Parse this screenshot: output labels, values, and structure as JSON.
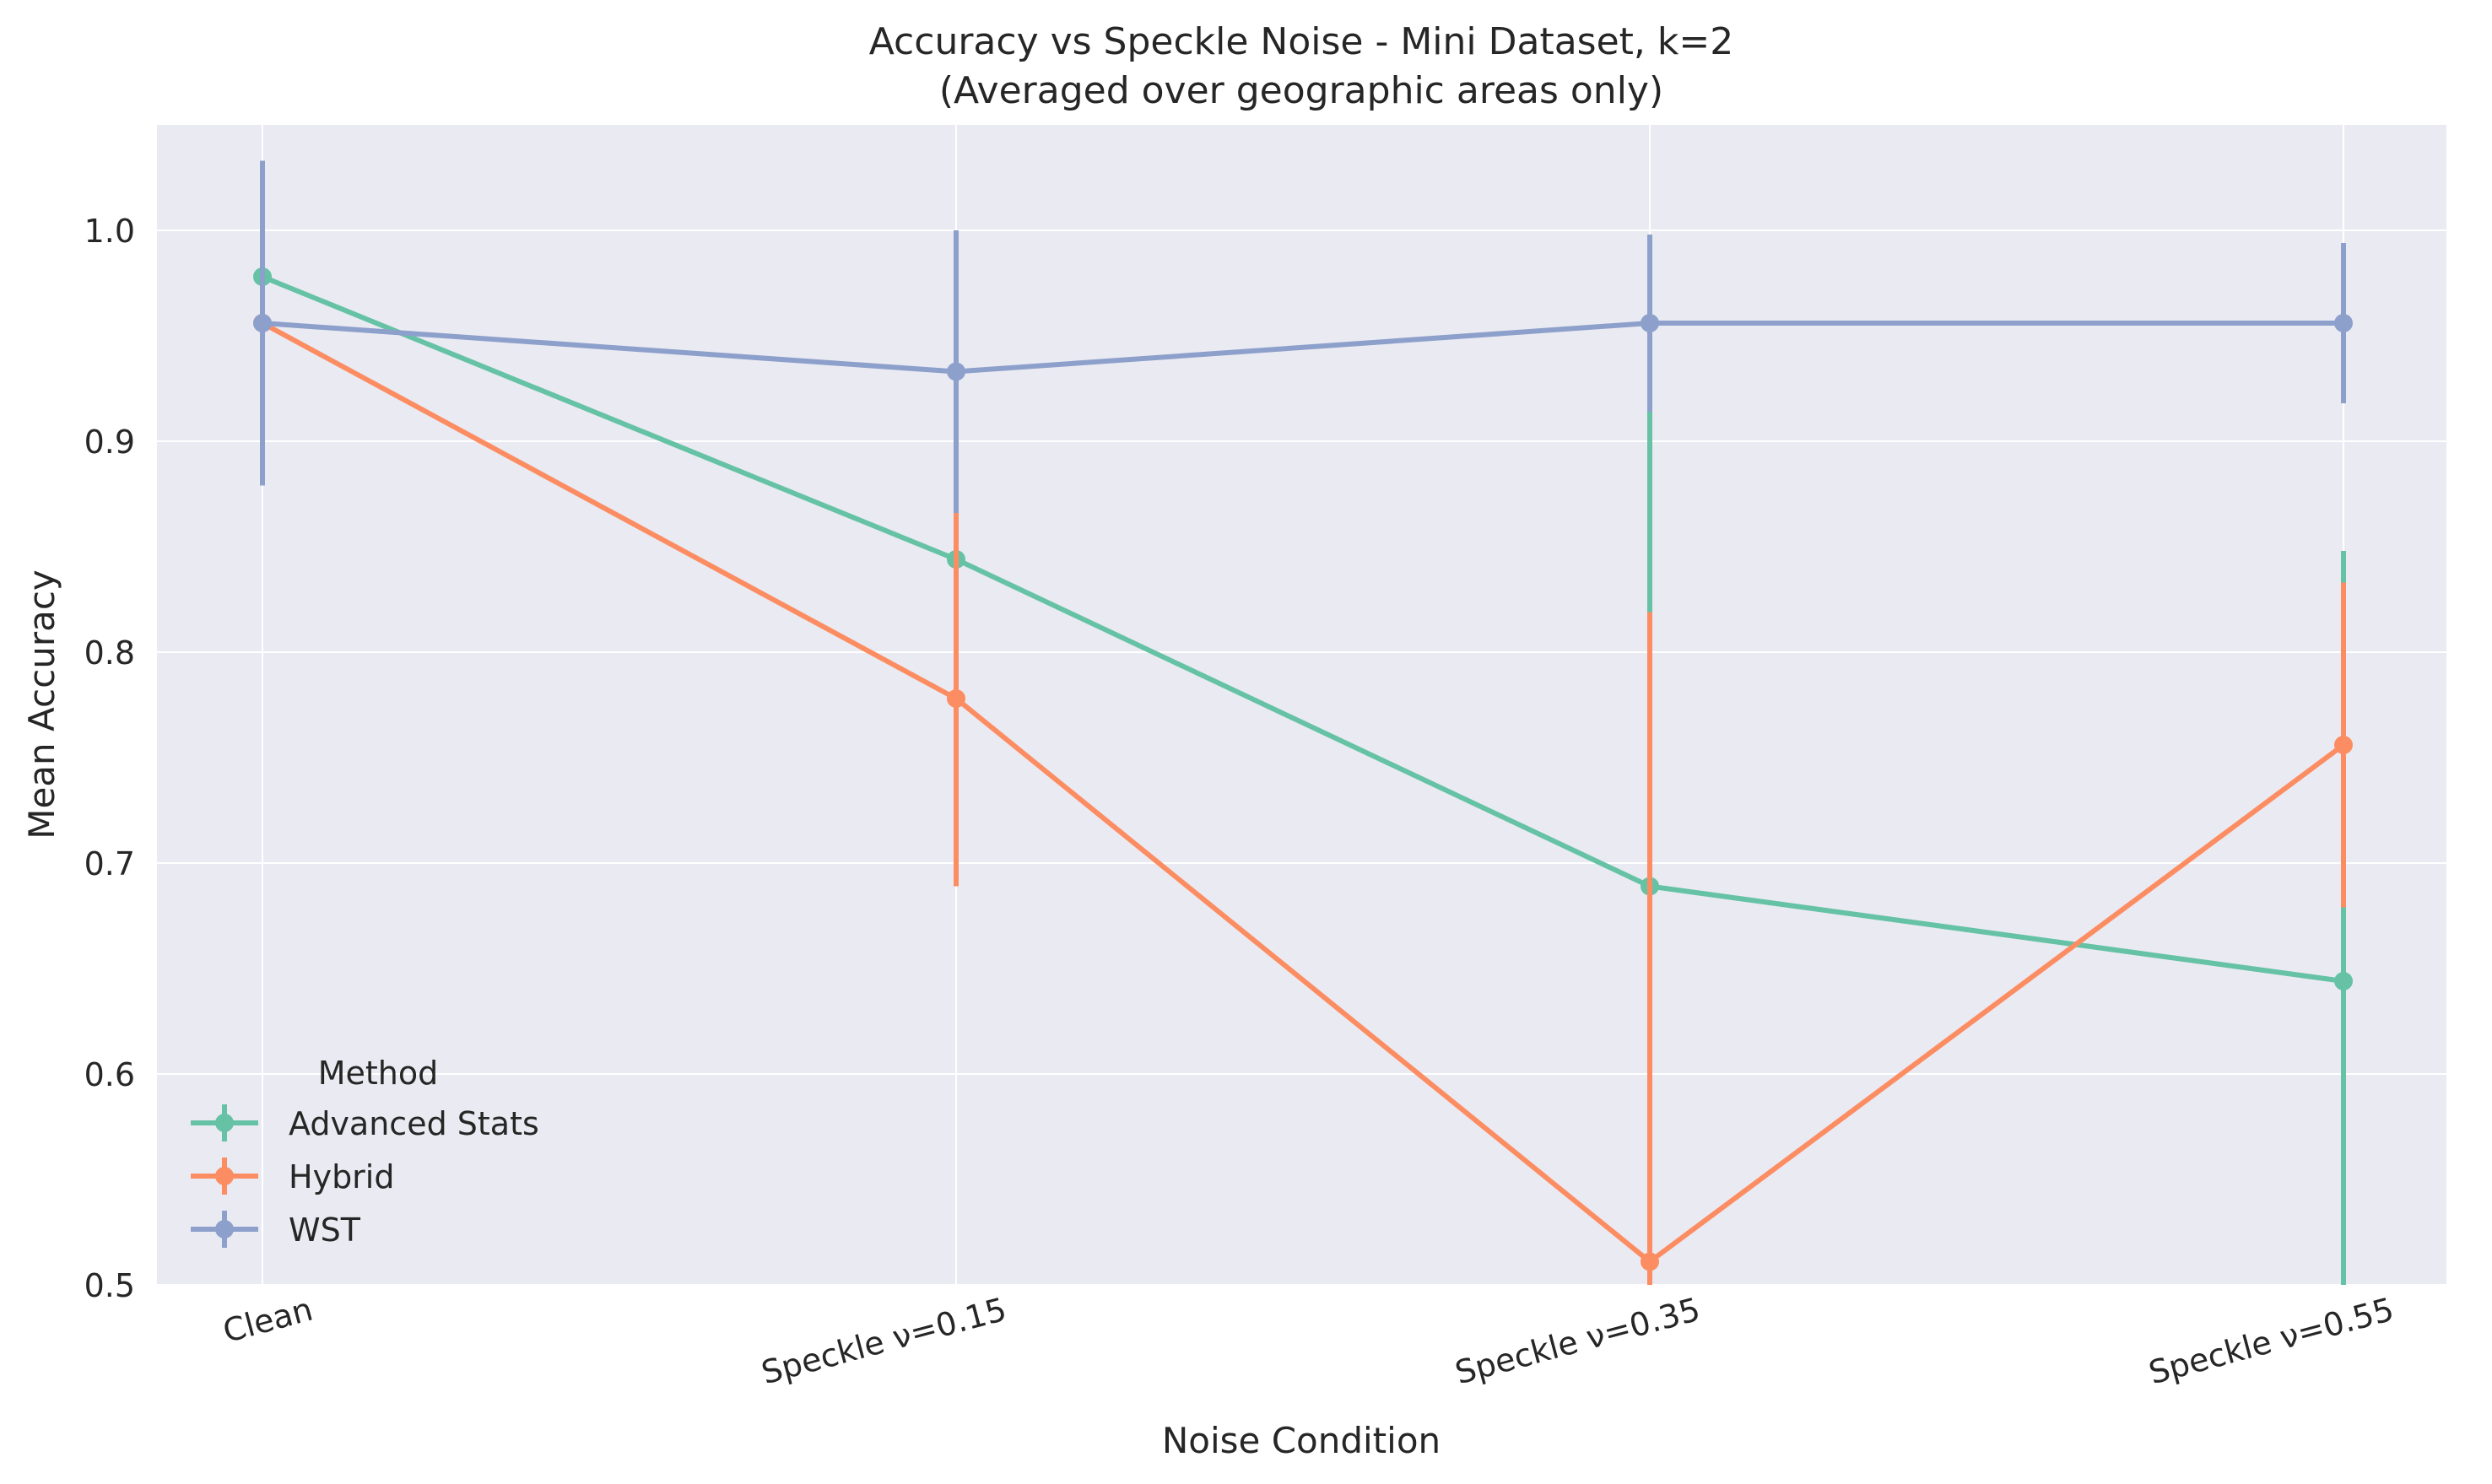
{
  "chart_data": {
    "type": "line",
    "title": "Accuracy vs Speckle Noise - Mini Dataset, k=2",
    "subtitle": "(Averaged over geographic areas only)",
    "xlabel": "Noise Condition",
    "ylabel": "Mean Accuracy",
    "categories": [
      "Clean",
      "Speckle ν=0.15",
      "Speckle ν=0.35",
      "Speckle ν=0.55"
    ],
    "ylim": [
      0.5,
      1.05
    ],
    "yticks": [
      "0.5",
      "0.6",
      "0.7",
      "0.8",
      "0.9",
      "1.0"
    ],
    "grid": true,
    "legend": {
      "title": "Method",
      "position": "lower-left"
    },
    "series": [
      {
        "name": "Advanced Stats",
        "color": "#66c2a5",
        "values": [
          0.978,
          0.844,
          0.689,
          0.644
        ],
        "errors": [
          0.0,
          0.0,
          0.227,
          0.204
        ]
      },
      {
        "name": "Hybrid",
        "color": "#fc8d62",
        "values": [
          0.956,
          0.778,
          0.511,
          0.756
        ],
        "errors": [
          0.0,
          0.089,
          0.308,
          0.077
        ]
      },
      {
        "name": "WST",
        "color": "#8da0cb",
        "values": [
          0.956,
          0.933,
          0.956,
          0.956
        ],
        "errors": [
          0.077,
          0.067,
          0.042,
          0.038
        ]
      }
    ]
  }
}
